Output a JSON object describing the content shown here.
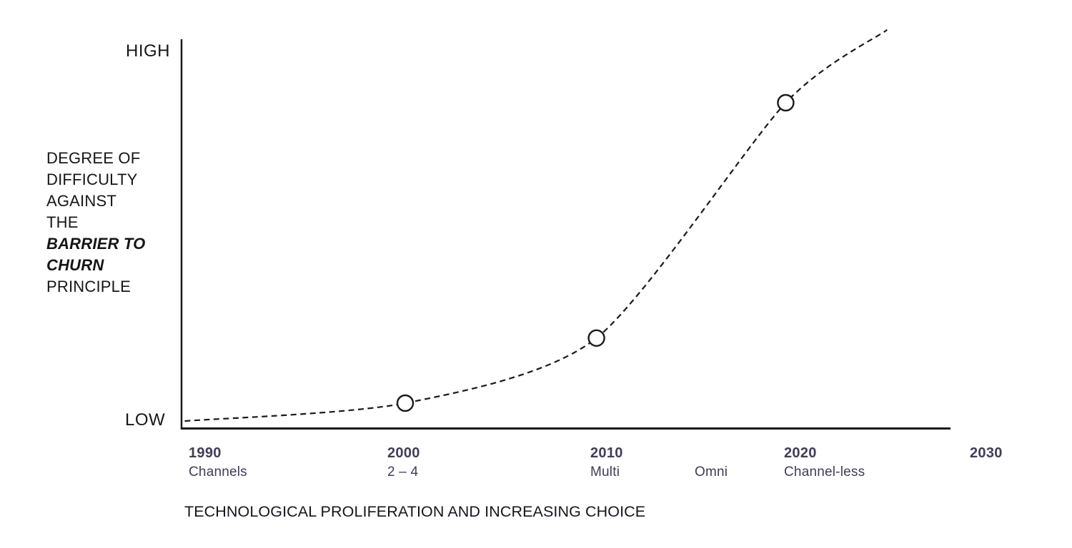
{
  "chart_data": {
    "type": "line",
    "line_style": "dashed",
    "marker_style": "open-circle",
    "colors": {
      "line": "#1a1a1a",
      "axis": "#1a1a1a",
      "tick_text": "#3f3d56",
      "text": "#161616"
    },
    "y_axis": {
      "high": "HIGH",
      "low": "LOW"
    },
    "y_title_lines": [
      "DEGREE OF",
      "DIFFICULTY",
      "AGAINST",
      "THE",
      "BARRIER TO",
      "CHURN",
      "PRINCIPLE"
    ],
    "y_title_emphasis": "BARRIER TO CHURN",
    "xlabel": "TECHNOLOGICAL PROLIFERATION AND INCREASING CHOICE",
    "x_range": [
      1990,
      2030
    ],
    "value_range": [
      0,
      100
    ],
    "x_ticks": [
      {
        "year": "1990",
        "label": "Channels"
      },
      {
        "year": "2000",
        "label": "2 – 4"
      },
      {
        "year": "2010",
        "label": "Multi"
      },
      {
        "year": "",
        "label": "Omni"
      },
      {
        "year": "2020",
        "label": "Channel-less"
      },
      {
        "year": "2030",
        "label": ""
      }
    ],
    "points": [
      {
        "year": 1989.8,
        "value": 2.0,
        "marker": false
      },
      {
        "year": 2001.1,
        "value": 6.6,
        "marker": true
      },
      {
        "year": 2010.9,
        "value": 23.3,
        "marker": true
      },
      {
        "year": 2020.6,
        "value": 83.7,
        "marker": true
      },
      {
        "year": 2025.8,
        "value": 102.4,
        "marker": false
      }
    ]
  }
}
